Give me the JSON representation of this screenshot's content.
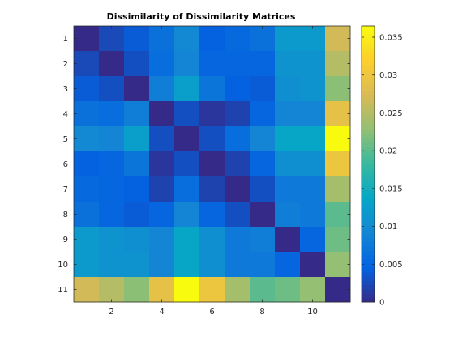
{
  "chart_data": {
    "type": "heatmap",
    "title": "Dissimilarity of Dissimilarity Matrices",
    "xlabel": "",
    "ylabel": "",
    "rows": 11,
    "cols": 11,
    "x_tick_labels": [
      "2",
      "4",
      "6",
      "8",
      "10"
    ],
    "x_tick_positions": [
      2,
      4,
      6,
      8,
      10
    ],
    "y_tick_labels": [
      "1",
      "2",
      "3",
      "4",
      "5",
      "6",
      "7",
      "8",
      "9",
      "10",
      "11"
    ],
    "y_tick_positions": [
      1,
      2,
      3,
      4,
      5,
      6,
      7,
      8,
      9,
      10,
      11
    ],
    "colormap": "parula",
    "clim": [
      0,
      0.0365
    ],
    "colorbar_tick_labels": [
      "0",
      "0.005",
      "0.01",
      "0.015",
      "0.02",
      "0.025",
      "0.03",
      "0.035"
    ],
    "colorbar_tick_values": [
      0,
      0.005,
      0.01,
      0.015,
      0.02,
      0.025,
      0.03,
      0.035
    ],
    "values": [
      [
        0,
        0.0025,
        0.004,
        0.0065,
        0.0095,
        0.0045,
        0.0055,
        0.0065,
        0.012,
        0.012,
        0.027
      ],
      [
        0.0025,
        0,
        0.003,
        0.006,
        0.009,
        0.005,
        0.005,
        0.005,
        0.011,
        0.011,
        0.025
      ],
      [
        0.004,
        0.003,
        0,
        0.008,
        0.0125,
        0.007,
        0.0045,
        0.004,
        0.0105,
        0.011,
        0.0225
      ],
      [
        0.0065,
        0.006,
        0.008,
        0,
        0.003,
        0.001,
        0.002,
        0.005,
        0.009,
        0.009,
        0.029
      ],
      [
        0.0095,
        0.009,
        0.0125,
        0.003,
        0,
        0.003,
        0.006,
        0.009,
        0.0135,
        0.0135,
        0.0365
      ],
      [
        0.0045,
        0.005,
        0.007,
        0.001,
        0.003,
        0,
        0.002,
        0.005,
        0.0105,
        0.0105,
        0.03
      ],
      [
        0.0055,
        0.005,
        0.0045,
        0.002,
        0.006,
        0.002,
        0,
        0.003,
        0.0075,
        0.0075,
        0.024
      ],
      [
        0.0065,
        0.005,
        0.004,
        0.005,
        0.009,
        0.005,
        0.003,
        0,
        0.008,
        0.0075,
        0.02
      ],
      [
        0.012,
        0.011,
        0.0105,
        0.009,
        0.0135,
        0.0105,
        0.0075,
        0.008,
        0,
        0.005,
        0.021
      ],
      [
        0.012,
        0.011,
        0.011,
        0.009,
        0.0135,
        0.0105,
        0.0075,
        0.0075,
        0.005,
        0,
        0.023
      ],
      [
        0.027,
        0.025,
        0.0225,
        0.029,
        0.0365,
        0.03,
        0.024,
        0.02,
        0.021,
        0.023,
        0
      ]
    ]
  }
}
